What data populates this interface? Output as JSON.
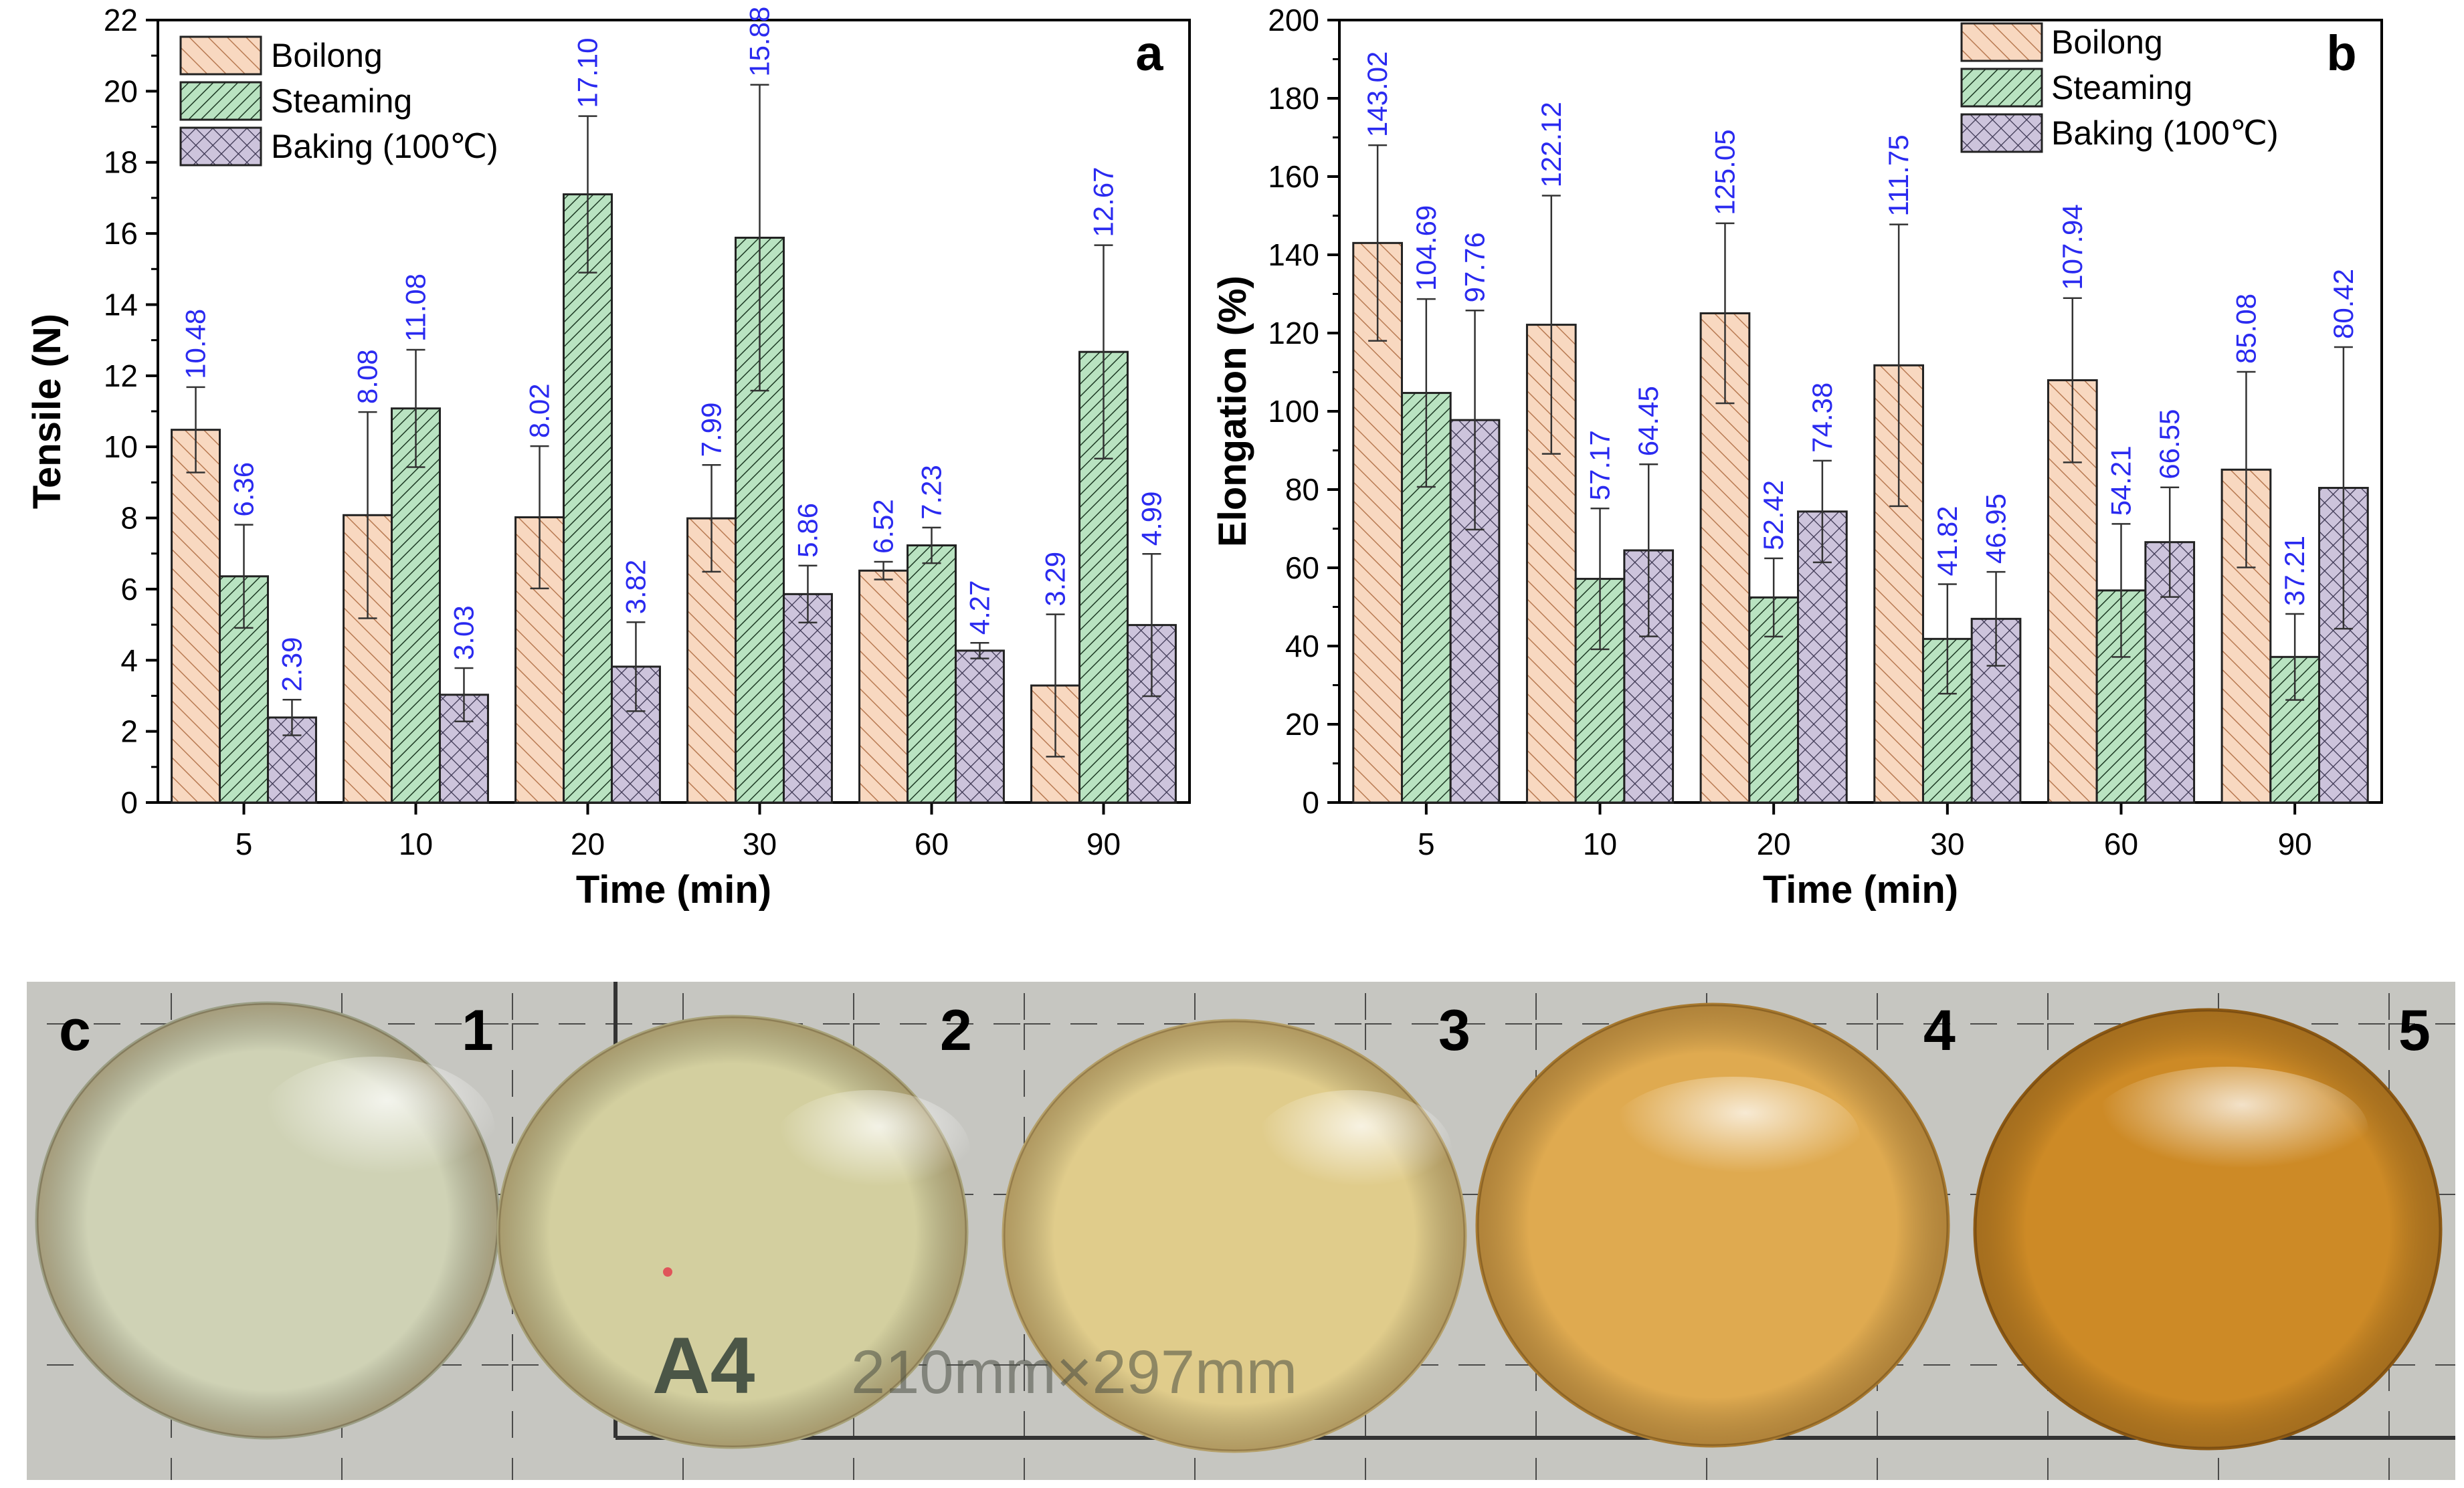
{
  "chart_data": [
    {
      "type": "bar",
      "panel": "a",
      "categories": [
        "5",
        "10",
        "20",
        "30",
        "60",
        "90"
      ],
      "series": [
        {
          "name": "Boilong",
          "values": [
            10.48,
            8.08,
            8.02,
            7.99,
            6.52,
            3.29
          ],
          "errors": [
            1.2,
            2.9,
            2.0,
            1.5,
            0.25,
            2.0
          ]
        },
        {
          "name": "Steaming",
          "values": [
            6.36,
            11.08,
            17.1,
            15.88,
            7.23,
            12.67
          ],
          "errors": [
            1.45,
            1.65,
            2.2,
            4.3,
            0.5,
            3.0
          ]
        },
        {
          "name": "Baking (100℃)",
          "values": [
            2.39,
            3.03,
            3.82,
            5.86,
            4.27,
            4.99
          ],
          "errors": [
            0.5,
            0.75,
            1.25,
            0.8,
            0.22,
            2.0
          ]
        }
      ],
      "value_labels": [
        [
          "10.48",
          "8.08",
          "8.02",
          "7.99",
          "6.52",
          "3.29"
        ],
        [
          "6.36",
          "11.08",
          "17.10",
          "15.88",
          "7.23",
          "12.67"
        ],
        [
          "2.39",
          "3.03",
          "3.82",
          "5.86",
          "4.27",
          "4.99"
        ]
      ],
      "title": "",
      "xlabel": "Time (min)",
      "ylabel": "Tensile (N)",
      "ylim": [
        0,
        22
      ],
      "yticks": [
        "0",
        "2",
        "4",
        "6",
        "8",
        "10",
        "12",
        "14",
        "16",
        "18",
        "20",
        "22"
      ],
      "legend_position": "top-left",
      "grid": false
    },
    {
      "type": "bar",
      "panel": "b",
      "categories": [
        "5",
        "10",
        "20",
        "30",
        "60",
        "90"
      ],
      "series": [
        {
          "name": "Boilong",
          "values": [
            143.02,
            122.12,
            125.05,
            111.75,
            107.94,
            85.08
          ],
          "errors": [
            25,
            33,
            23,
            36,
            21,
            25
          ]
        },
        {
          "name": "Steaming",
          "values": [
            104.69,
            57.17,
            52.42,
            41.82,
            54.21,
            37.21
          ],
          "errors": [
            24,
            18,
            10,
            14,
            17,
            11
          ]
        },
        {
          "name": "Baking (100℃)",
          "values": [
            97.76,
            64.45,
            74.38,
            46.95,
            66.55,
            80.42
          ],
          "errors": [
            28,
            22,
            13,
            12,
            14,
            36
          ]
        }
      ],
      "value_labels": [
        [
          "143.02",
          "122.12",
          "125.05",
          "111.75",
          "107.94",
          "85.08"
        ],
        [
          "104.69",
          "57.17",
          "52.42",
          "41.82",
          "54.21",
          "37.21"
        ],
        [
          "97.76",
          "64.45",
          "74.38",
          "46.95",
          "66.55",
          "80.42"
        ]
      ],
      "title": "",
      "xlabel": "Time (min)",
      "ylabel": "Elongation (%)",
      "ylim": [
        0,
        200
      ],
      "yticks": [
        "0",
        "20",
        "40",
        "60",
        "80",
        "100",
        "120",
        "140",
        "160",
        "180",
        "200"
      ],
      "legend_position": "top-right",
      "grid": false
    }
  ],
  "colors": {
    "boiling_fill": "#f8d8c0",
    "steaming_fill": "#b9e3c1",
    "baking_fill": "#cdc4dc",
    "hatch": "#2b2b2b",
    "value_label": "#2a2af0",
    "photo_background": "#c7c7c3"
  },
  "photo": {
    "panel_letter": "c",
    "sample_numbers": [
      "1",
      "2",
      "3",
      "4",
      "5"
    ],
    "sheet_label": "A4",
    "sheet_size_text": "210mm×297mm",
    "sample_colors": [
      "#cfd2b5",
      "#d3cf9f",
      "#e0cc8b",
      "#dfaa50",
      "#cd8a26"
    ]
  }
}
